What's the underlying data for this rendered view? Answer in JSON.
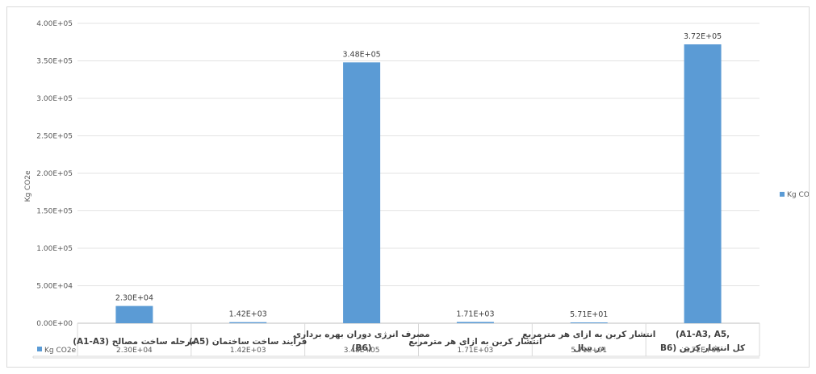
{
  "chart_data": {
    "type": "bar",
    "ylabel": "Kg CO2e",
    "ylim": [
      0,
      400000
    ],
    "yticks": [
      "0.00E+00",
      "5.00E+04",
      "1.00E+05",
      "1.50E+05",
      "2.00E+05",
      "2.50E+05",
      "3.00E+05",
      "3.50E+05",
      "4.00E+05"
    ],
    "grid": true,
    "legend_position": "right",
    "bar_color": "#5b9bd5",
    "categories": [
      [
        "(A1-A3) مرحله ساخت مصالح"
      ],
      [
        "(A5) فرآیند ساخت ساختمان"
      ],
      [
        "مصرف انرژی دوران بهره برداری",
        "(B6)"
      ],
      [
        "انتشار کربن به ازای هر مترمربع"
      ],
      [
        "انتشار کربن به ازای هر مترمربع",
        "در سال"
      ],
      [
        "(A1-A3, A5,",
        "B6) کل انتشار کربن"
      ]
    ],
    "series": [
      {
        "name": "Kg CO2e",
        "values": [
          23000,
          1420,
          348000,
          1710,
          57.1,
          372000
        ],
        "labels": [
          "2.30E+04",
          "1.42E+03",
          "3.48E+05",
          "1.71E+03",
          "5.71E+01",
          "3.72E+05"
        ]
      }
    ]
  }
}
